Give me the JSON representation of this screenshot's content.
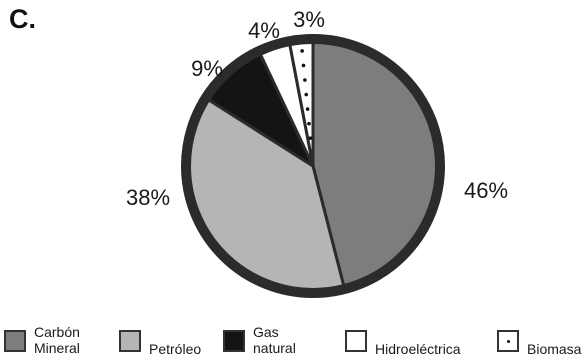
{
  "panel_label": "C.",
  "chart_data": {
    "type": "pie",
    "slices": [
      {
        "label_lines": [
          "Carbón",
          "Mineral"
        ],
        "value": 46,
        "value_label": "46%",
        "color": "#7d7d7d",
        "pattern": "solid"
      },
      {
        "label_lines": [
          "Petróleo"
        ],
        "value": 38,
        "value_label": "38%",
        "color": "#b5b5b5",
        "pattern": "solid"
      },
      {
        "label_lines": [
          "Gas",
          "natural"
        ],
        "value": 9,
        "value_label": "9%",
        "color": "#141414",
        "pattern": "solid"
      },
      {
        "label_lines": [
          "Hidroeléctrica"
        ],
        "value": 4,
        "value_label": "4%",
        "color": "#ffffff",
        "pattern": "solid"
      },
      {
        "label_lines": [
          "Biomasa"
        ],
        "value": 3,
        "value_label": "3%",
        "color": "#ffffff",
        "pattern": "dotted"
      }
    ],
    "start_angle_deg": 0,
    "direction": "clockwise",
    "outline_color": "#2b2b2b",
    "legend_position": "bottom"
  }
}
